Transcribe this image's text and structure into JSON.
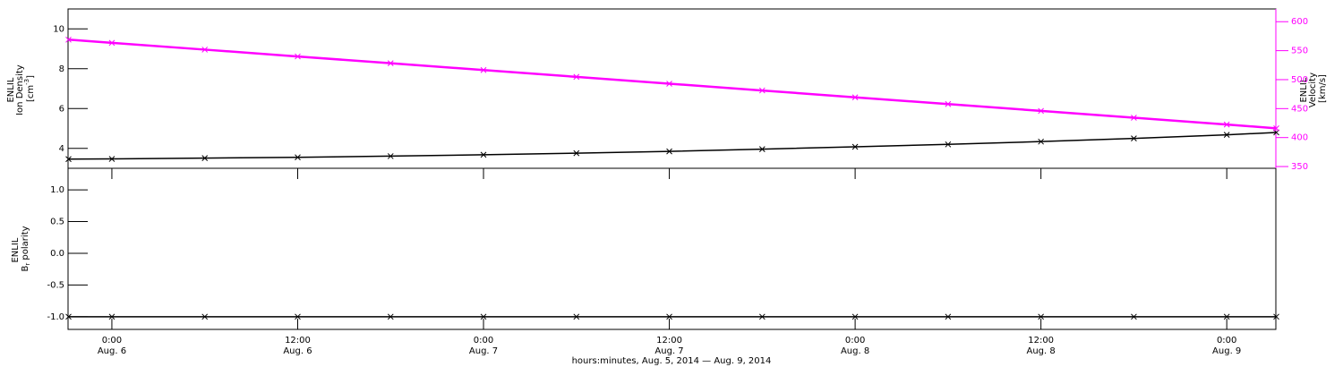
{
  "chart_data": [
    {
      "type": "line",
      "ylabel": [
        "ENLIL",
        "Ion Density",
        "[cm",
        "-3",
        "]"
      ],
      "y2label": [
        "ENLIL",
        "Velocity",
        "[km/s]"
      ],
      "x": [
        -2.8,
        0,
        6,
        12,
        18,
        24,
        30,
        36,
        42,
        48,
        54,
        60,
        66,
        72,
        75.2
      ],
      "xlim": [
        -2.83,
        75.17
      ],
      "series": [
        {
          "name": "Ion Density",
          "color": "#000000",
          "values": [
            3.46,
            3.47,
            3.51,
            3.55,
            3.61,
            3.68,
            3.76,
            3.85,
            3.96,
            4.08,
            4.2,
            4.34,
            4.5,
            4.68,
            4.8
          ]
        },
        {
          "name": "Velocity",
          "color": "#ff00ff",
          "axis": "y2",
          "values": [
            569,
            563.5,
            551.8,
            540,
            528.3,
            516.5,
            504.8,
            493,
            481.3,
            469.5,
            457.8,
            446,
            434.3,
            422.5,
            416
          ]
        }
      ],
      "ylim": [
        3,
        11
      ],
      "yticks": [
        4,
        6,
        8,
        10
      ],
      "y2lim": [
        347,
        622
      ],
      "y2ticks": [
        350,
        400,
        450,
        500,
        550,
        600
      ]
    },
    {
      "type": "line",
      "ylabel": [
        "ENLIL",
        "B",
        "r",
        " polarity"
      ],
      "x": [
        -2.8,
        0,
        6,
        12,
        18,
        24,
        30,
        36,
        42,
        48,
        54,
        60,
        66,
        72,
        75.2
      ],
      "xlim": [
        -2.83,
        75.17
      ],
      "series": [
        {
          "name": "Br polarity",
          "color": "#000000",
          "values": [
            -1,
            -1,
            -1,
            -1,
            -1,
            -1,
            -1,
            -1,
            -1,
            -1,
            -1,
            -1,
            -1,
            -1,
            -1
          ]
        }
      ],
      "ylim": [
        -1.2,
        1.34
      ],
      "yticks": [
        {
          "value": -1,
          "label": "-1.0"
        },
        {
          "value": -0.5,
          "label": "-0.5"
        },
        {
          "value": 0,
          "label": "0.0"
        },
        {
          "value": 0.5,
          "label": "0.5"
        },
        {
          "value": 1,
          "label": "1.0"
        }
      ],
      "xticks": [
        {
          "value": 0,
          "label": "0:00",
          "date": "Aug. 6"
        },
        {
          "value": 12,
          "label": "12:00",
          "date": "Aug. 6"
        },
        {
          "value": 24,
          "label": "0:00",
          "date": "Aug. 7"
        },
        {
          "value": 36,
          "label": "12:00",
          "date": "Aug. 7"
        },
        {
          "value": 48,
          "label": "0:00",
          "date": "Aug. 8"
        },
        {
          "value": 60,
          "label": "12:00",
          "date": "Aug. 8"
        },
        {
          "value": 72,
          "label": "0:00",
          "date": "Aug. 9"
        }
      ],
      "xlabel": "hours:minutes, Aug.  5, 2014 — Aug.  9, 2014"
    }
  ]
}
